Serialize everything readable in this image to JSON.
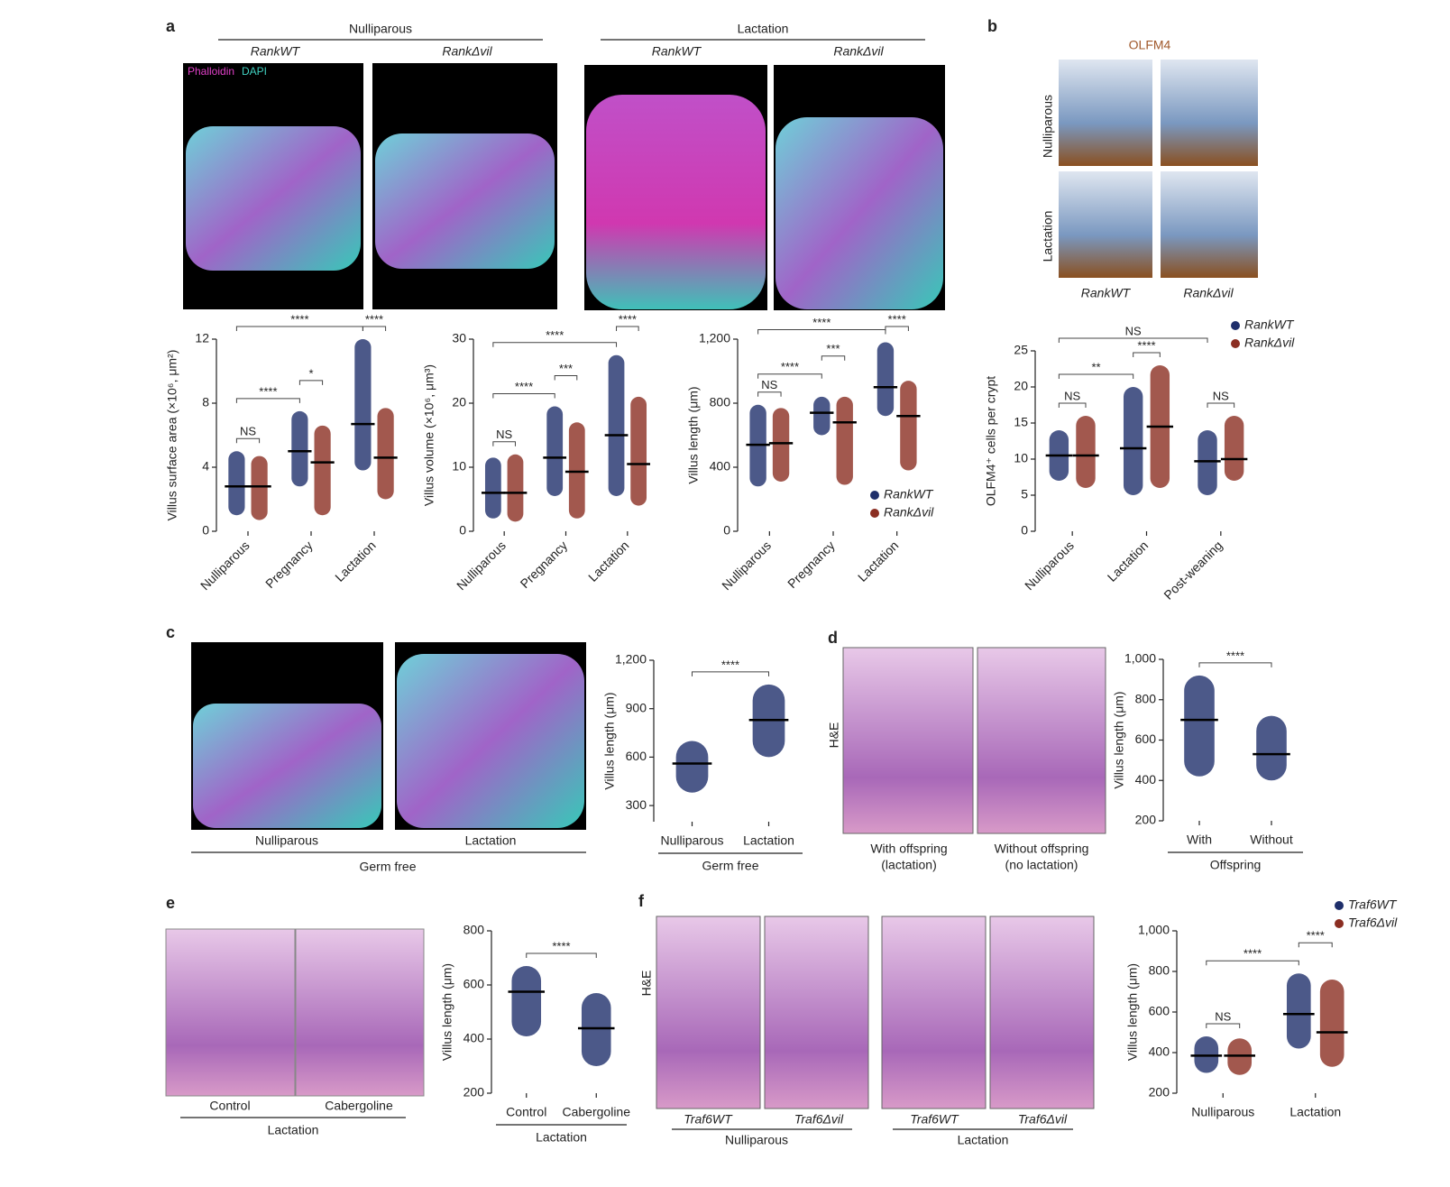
{
  "figure": {
    "letters": [
      "a",
      "b",
      "c",
      "d",
      "e",
      "f"
    ],
    "a": {
      "groups": [
        "Nulliparous",
        "Lactation"
      ],
      "genotypes": [
        "RankWT",
        "RankΔvil",
        "RankWT",
        "RankΔvil"
      ],
      "stain": [
        "Phalloidin",
        "DAPI"
      ]
    },
    "b": {
      "stain": "OLFM4",
      "rows": [
        "Nulliparous",
        "Lactation"
      ],
      "genotypes": [
        "RankWT",
        "RankΔvil"
      ]
    },
    "c": {
      "images": [
        "Nulliparous",
        "Lactation"
      ],
      "group": "Germ free"
    },
    "d": {
      "stain": "H&E",
      "images": [
        [
          "With offspring",
          "(lactation)"
        ],
        [
          "Without offspring",
          "(no lactation)"
        ]
      ]
    },
    "e": {
      "images": [
        "Control",
        "Cabergoline"
      ],
      "group": "Lactation"
    },
    "f": {
      "stain": "H&E",
      "genotypes": [
        "Traf6WT",
        "Traf6Δvil",
        "Traf6WT",
        "Traf6Δvil"
      ],
      "groups": [
        "Nulliparous",
        "Lactation"
      ]
    }
  },
  "chart_data": [
    {
      "type": "dot",
      "ylabel": "Villus surface area (×10⁶, μm²)",
      "categories": [
        "Nulliparous",
        "Pregnancy",
        "Lactation"
      ],
      "series": [
        {
          "name": "RankWT",
          "color": "#1f2f6b",
          "values": [
            2.8,
            5.0,
            6.7
          ],
          "ranges": [
            [
              1,
              5
            ],
            [
              2.8,
              7.5
            ],
            [
              3.8,
              12
            ]
          ]
        },
        {
          "name": "RankΔvil",
          "color": "#8b2e22",
          "values": [
            2.8,
            4.3,
            4.6
          ],
          "ranges": [
            [
              0.7,
              4.7
            ],
            [
              1,
              6.6
            ],
            [
              2,
              7.7
            ]
          ]
        }
      ],
      "ylim": [
        0,
        12
      ],
      "yticks": [
        0,
        4,
        8,
        12
      ],
      "comparisons": [
        {
          "label": "NS",
          "groups": [
            0,
            1
          ]
        },
        {
          "label": "****",
          "groups": [
            0,
            2
          ]
        },
        {
          "label": "*",
          "groups": [
            2,
            3
          ]
        },
        {
          "label": "****",
          "groups": [
            0,
            4
          ]
        },
        {
          "label": "****",
          "groups": [
            4,
            5
          ]
        }
      ],
      "rotate_labels": true
    },
    {
      "type": "dot",
      "ylabel": "Villus volume (×10⁶, μm³)",
      "categories": [
        "Nulliparous",
        "Pregnancy",
        "Lactation"
      ],
      "series": [
        {
          "name": "RankWT",
          "color": "#1f2f6b",
          "values": [
            6,
            11.5,
            15
          ],
          "ranges": [
            [
              2,
              11.5
            ],
            [
              5.5,
              19.5
            ],
            [
              5.5,
              27.5
            ]
          ]
        },
        {
          "name": "RankΔvil",
          "color": "#8b2e22",
          "values": [
            6,
            9.3,
            10.5
          ],
          "ranges": [
            [
              1.5,
              12
            ],
            [
              2,
              17
            ],
            [
              4,
              21
            ]
          ]
        }
      ],
      "ylim": [
        0,
        30
      ],
      "yticks": [
        0,
        10,
        20,
        30
      ],
      "comparisons": [
        {
          "label": "NS",
          "groups": [
            0,
            1
          ]
        },
        {
          "label": "****",
          "groups": [
            0,
            2
          ]
        },
        {
          "label": "***",
          "groups": [
            2,
            3
          ]
        },
        {
          "label": "****",
          "groups": [
            0,
            4
          ]
        },
        {
          "label": "****",
          "groups": [
            4,
            5
          ]
        }
      ],
      "rotate_labels": true
    },
    {
      "type": "dot",
      "ylabel": "Villus length (μm)",
      "categories": [
        "Nulliparous",
        "Pregnancy",
        "Lactation"
      ],
      "series": [
        {
          "name": "RankWT",
          "color": "#1f2f6b",
          "values": [
            540,
            740,
            900
          ],
          "ranges": [
            [
              280,
              790
            ],
            [
              600,
              840
            ],
            [
              720,
              1180
            ]
          ]
        },
        {
          "name": "RankΔvil",
          "color": "#8b2e22",
          "values": [
            550,
            680,
            720
          ],
          "ranges": [
            [
              310,
              770
            ],
            [
              290,
              840
            ],
            [
              380,
              940
            ]
          ]
        }
      ],
      "ylim": [
        0,
        1200
      ],
      "yticks": [
        0,
        400,
        800,
        {
          "value": 1200,
          "label": "1,200"
        }
      ],
      "comparisons": [
        {
          "label": "NS",
          "groups": [
            0,
            1
          ]
        },
        {
          "label": "****",
          "groups": [
            0,
            2
          ]
        },
        {
          "label": "***",
          "groups": [
            2,
            3
          ]
        },
        {
          "label": "****",
          "groups": [
            0,
            4
          ]
        },
        {
          "label": "****",
          "groups": [
            4,
            5
          ]
        }
      ],
      "rotate_labels": true,
      "legend": "bottom-right"
    },
    {
      "type": "dot",
      "ylabel": "OLFM4⁺ cells per crypt",
      "categories": [
        "Nulliparous",
        "Lactation",
        "Post-weaning"
      ],
      "series": [
        {
          "name": "RankWT",
          "color": "#1f2f6b",
          "values": [
            10.5,
            11.5,
            9.7
          ],
          "ranges": [
            [
              7,
              14
            ],
            [
              5,
              20
            ],
            [
              5,
              14
            ]
          ]
        },
        {
          "name": "RankΔvil",
          "color": "#8b2e22",
          "values": [
            10.5,
            14.5,
            10
          ],
          "ranges": [
            [
              6,
              16
            ],
            [
              6,
              23
            ],
            [
              7,
              16
            ]
          ]
        }
      ],
      "ylim": [
        0,
        25
      ],
      "yticks": [
        0,
        5,
        10,
        15,
        20,
        25
      ],
      "comparisons": [
        {
          "label": "NS",
          "groups": [
            0,
            1
          ]
        },
        {
          "label": "**",
          "groups": [
            0,
            2
          ]
        },
        {
          "label": "****",
          "groups": [
            2,
            3
          ]
        },
        {
          "label": "NS",
          "groups": [
            4,
            5
          ]
        },
        {
          "label": "NS",
          "groups": [
            0,
            4
          ]
        }
      ],
      "rotate_labels": true,
      "legend": "top-right"
    },
    {
      "type": "dot",
      "ylabel": "Villus length (μm)",
      "categories": [
        "Nulliparous",
        "Lactation"
      ],
      "group_label": "Germ free",
      "series": [
        {
          "color": "#1f2f6b",
          "values": [
            560,
            830
          ],
          "ranges": [
            [
              380,
              700
            ],
            [
              600,
              1050
            ]
          ]
        }
      ],
      "ylim": [
        200,
        1200
      ],
      "yticks": [
        300,
        600,
        900,
        {
          "value": 1200,
          "label": "1,200"
        }
      ],
      "comparisons": [
        {
          "label": "****",
          "groups": [
            0,
            1
          ]
        }
      ]
    },
    {
      "type": "dot",
      "ylabel": "Villus length (μm)",
      "categories": [
        "With",
        "Without"
      ],
      "group_label": "Offspring",
      "series": [
        {
          "color": "#1f2f6b",
          "values": [
            700,
            530
          ],
          "ranges": [
            [
              420,
              920
            ],
            [
              400,
              720
            ]
          ]
        }
      ],
      "ylim": [
        200,
        1000
      ],
      "yticks": [
        200,
        400,
        600,
        800,
        {
          "value": 1000,
          "label": "1,000"
        }
      ],
      "comparisons": [
        {
          "label": "****",
          "groups": [
            0,
            1
          ]
        }
      ]
    },
    {
      "type": "dot",
      "ylabel": "Villus length (μm)",
      "categories": [
        "Control",
        "Cabergoline"
      ],
      "group_label": "Lactation",
      "series": [
        {
          "color": "#1f2f6b",
          "values": [
            575,
            440
          ],
          "ranges": [
            [
              410,
              670
            ],
            [
              300,
              570
            ]
          ]
        }
      ],
      "ylim": [
        200,
        800
      ],
      "yticks": [
        200,
        400,
        600,
        800
      ],
      "comparisons": [
        {
          "label": "****",
          "groups": [
            0,
            1
          ]
        }
      ]
    },
    {
      "type": "dot",
      "ylabel": "Villus length (μm)",
      "categories": [
        "Nulliparous",
        "Lactation"
      ],
      "series": [
        {
          "name": "Traf6WT",
          "color": "#1f2f6b",
          "values": [
            385,
            590
          ],
          "ranges": [
            [
              300,
              480
            ],
            [
              420,
              790
            ]
          ]
        },
        {
          "name": "Traf6Δvil",
          "color": "#8b2e22",
          "values": [
            385,
            500
          ],
          "ranges": [
            [
              290,
              470
            ],
            [
              330,
              760
            ]
          ]
        }
      ],
      "ylim": [
        200,
        1000
      ],
      "yticks": [
        200,
        400,
        600,
        800,
        {
          "value": 1000,
          "label": "1,000"
        }
      ],
      "comparisons": [
        {
          "label": "NS",
          "groups": [
            0,
            1
          ]
        },
        {
          "label": "****",
          "groups": [
            0,
            2
          ]
        },
        {
          "label": "****",
          "groups": [
            2,
            3
          ]
        }
      ],
      "legend": "top-right"
    }
  ]
}
